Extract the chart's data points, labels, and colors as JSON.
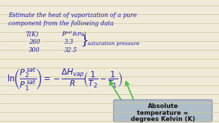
{
  "bg_color": "#f0ead8",
  "line_color": "#d0c8a0",
  "text_color": "#1a1aaa",
  "box_bg": "#b0bec8",
  "box_edge": "#8899aa",
  "box_text_color": "#111111",
  "arrow_color": "#44bb44",
  "title_line1": "Estimate the heat of vaporization of a pure",
  "title_line2": "component from the following data",
  "col1_header": "T(K)",
  "col2_header_main": "$P^{sat}$",
  "col2_header_unit": "(kPa)",
  "row1_t": "260",
  "row1_p": "3.3",
  "row2_t": "300",
  "row2_p": "32.5",
  "sat_label": "saturation pressure",
  "box_line1": "Absolute",
  "box_line2": "temperature =",
  "box_line3": "degrees Kelvin (K)",
  "figwidth": 3.2,
  "figheight": 1.8,
  "dpi": 100
}
